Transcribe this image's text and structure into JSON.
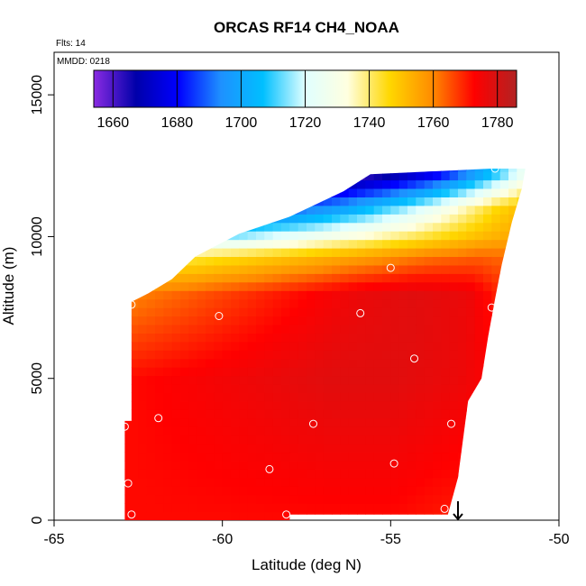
{
  "chart_data": {
    "type": "heatmap",
    "title": "ORCAS RF14 CH4_NOAA",
    "annotations": [
      "Flts: 14",
      "MMDD: 0218"
    ],
    "xlabel": "Latitude (deg N)",
    "ylabel": "Altitude (m)",
    "xlim": [
      -65,
      -50
    ],
    "ylim": [
      0,
      16500
    ],
    "x_ticks": [
      -65,
      -60,
      -55,
      -50
    ],
    "x_tick_labels": [
      "-65",
      "-60",
      "-55",
      "-50"
    ],
    "y_ticks": [
      0,
      5000,
      10000,
      15000
    ],
    "y_tick_labels": [
      "0",
      "5000",
      "10000",
      "15000"
    ],
    "colorbar": {
      "min": 1654,
      "max": 1786,
      "ticks": [
        1660,
        1680,
        1700,
        1720,
        1740,
        1760,
        1780
      ],
      "tick_labels": [
        "1660",
        "1680",
        "1700",
        "1720",
        "1740",
        "1760",
        "1780"
      ],
      "colors": [
        "#8a2be2",
        "#0000aa",
        "#0000ff",
        "#1e90ff",
        "#00bfff",
        "#e0ffff",
        "#ffffe0",
        "#ffd700",
        "#ff8c00",
        "#ff0000",
        "#b22222"
      ]
    },
    "field_outline": [
      [
        -62.9,
        0
      ],
      [
        -62.9,
        3500
      ],
      [
        -62.7,
        3500
      ],
      [
        -62.7,
        7700
      ],
      [
        -62.2,
        8000
      ],
      [
        -61.5,
        8500
      ],
      [
        -60.8,
        9300
      ],
      [
        -59.5,
        10100
      ],
      [
        -58.0,
        10700
      ],
      [
        -56.4,
        11600
      ],
      [
        -55.6,
        12200
      ],
      [
        -52.0,
        12400
      ],
      [
        -51.0,
        12400
      ],
      [
        -51.1,
        11700
      ],
      [
        -51.4,
        10500
      ],
      [
        -51.7,
        9000
      ],
      [
        -51.9,
        7800
      ],
      [
        -52.1,
        6500
      ],
      [
        -52.3,
        5000
      ],
      [
        -52.7,
        4200
      ],
      [
        -53.0,
        1500
      ],
      [
        -53.3,
        200
      ],
      [
        -58.0,
        200
      ],
      [
        -58.0,
        0
      ]
    ],
    "field_levels": [
      {
        "alt": 12200,
        "lat_start": -56.4,
        "values": [
          1658,
          1662,
          1666,
          1672,
          1678,
          1688,
          1700,
          1712,
          1726
        ]
      },
      {
        "alt": 11000,
        "lat_start": -58.0,
        "values": [
          1688,
          1694,
          1700,
          1708,
          1716,
          1726,
          1736,
          1746,
          1752
        ]
      },
      {
        "alt": 10000,
        "lat_start": -59.5,
        "values": [
          1716,
          1722,
          1728,
          1734,
          1740,
          1746,
          1752,
          1756
        ]
      },
      {
        "alt": 9300,
        "lat_start": -60.8,
        "values": [
          1742,
          1746,
          1750,
          1754,
          1758,
          1762,
          1764,
          1762
        ]
      },
      {
        "alt": 8000,
        "lat_start": -62.7,
        "values": [
          1760,
          1764,
          1768,
          1772,
          1776,
          1778,
          1776,
          1764
        ]
      },
      {
        "alt": 5000,
        "lat_start": -62.7,
        "values": [
          1772,
          1774,
          1776,
          1778,
          1778,
          1776,
          1770
        ]
      },
      {
        "alt": 0,
        "lat_start": -62.9,
        "values": [
          1772,
          1772,
          1772,
          1772,
          1772,
          1770,
          1768
        ]
      }
    ],
    "sample_points": [
      {
        "lat": -56.4,
        "alt": 12200
      },
      {
        "lat": -51.9,
        "alt": 12400
      },
      {
        "lat": -55.0,
        "alt": 8900
      },
      {
        "lat": -62.7,
        "alt": 7600
      },
      {
        "lat": -60.1,
        "alt": 7200
      },
      {
        "lat": -55.9,
        "alt": 7300
      },
      {
        "lat": -52.0,
        "alt": 7500
      },
      {
        "lat": -54.3,
        "alt": 5700
      },
      {
        "lat": -61.9,
        "alt": 3600
      },
      {
        "lat": -57.3,
        "alt": 3400
      },
      {
        "lat": -53.2,
        "alt": 3400
      },
      {
        "lat": -62.9,
        "alt": 3300
      },
      {
        "lat": -58.6,
        "alt": 1800
      },
      {
        "lat": -54.9,
        "alt": 2000
      },
      {
        "lat": -62.8,
        "alt": 1300
      },
      {
        "lat": -62.7,
        "alt": 200
      },
      {
        "lat": -58.1,
        "alt": 200
      },
      {
        "lat": -53.4,
        "alt": 400
      }
    ],
    "arrow_marker": {
      "lat": -53.0,
      "alt": 0,
      "direction": "down"
    },
    "grid": false,
    "legend": "top"
  }
}
